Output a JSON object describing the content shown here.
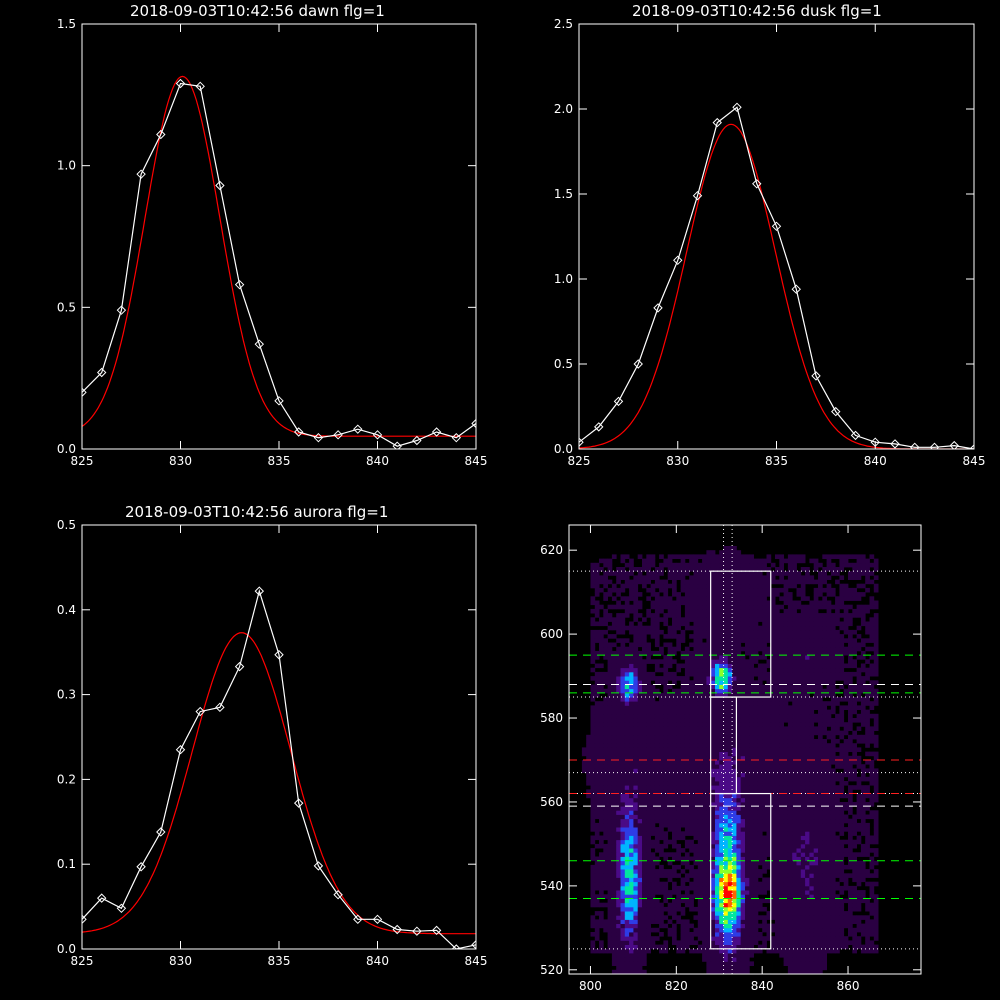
{
  "chart_data": [
    {
      "type": "line",
      "title": "2018-09-03T10:42:56 dawn flg=1",
      "xlim": [
        825,
        845
      ],
      "ylim": [
        0,
        1.5
      ],
      "xticks": [
        825,
        830,
        835,
        840,
        845
      ],
      "yticks": [
        0.0,
        0.5,
        1.0,
        1.5
      ],
      "ytick_labels": [
        "0.0",
        "0.5",
        "1.0",
        "1.5"
      ],
      "series": [
        {
          "color": "#ffffff",
          "markers": "diamond",
          "x": [
            825,
            826,
            827,
            828,
            829,
            830,
            831,
            832,
            833,
            834,
            835,
            836,
            837,
            838,
            839,
            840,
            841,
            842,
            843,
            844,
            845
          ],
          "y": [
            0.2,
            0.27,
            0.49,
            0.97,
            1.11,
            1.29,
            1.28,
            0.93,
            0.58,
            0.37,
            0.17,
            0.06,
            0.04,
            0.05,
            0.07,
            0.05,
            0.01,
            0.03,
            0.06,
            0.04,
            0.09
          ]
        },
        {
          "color": "#ff0000",
          "markers": "none",
          "fit": {
            "amplitude": 1.27,
            "center": 830.1,
            "sigma": 1.9,
            "baseline": 0.045
          }
        }
      ]
    },
    {
      "type": "line",
      "title": "2018-09-03T10:42:56 dusk flg=1",
      "xlim": [
        825,
        845
      ],
      "ylim": [
        0,
        2.5
      ],
      "xticks": [
        825,
        830,
        835,
        840,
        845
      ],
      "yticks": [
        0.0,
        0.5,
        1.0,
        1.5,
        2.0,
        2.5
      ],
      "ytick_labels": [
        "0.0",
        "0.5",
        "1.0",
        "1.5",
        "2.0",
        "2.5"
      ],
      "series": [
        {
          "color": "#ffffff",
          "markers": "diamond",
          "x": [
            825,
            826,
            827,
            828,
            829,
            830,
            831,
            832,
            833,
            834,
            835,
            836,
            837,
            838,
            839,
            840,
            841,
            842,
            843,
            844,
            845
          ],
          "y": [
            0.04,
            0.13,
            0.28,
            0.5,
            0.83,
            1.11,
            1.49,
            1.92,
            2.01,
            1.56,
            1.31,
            0.94,
            0.43,
            0.22,
            0.08,
            0.04,
            0.03,
            0.01,
            0.01,
            0.02,
            0.0
          ]
        },
        {
          "color": "#ff0000",
          "markers": "none",
          "fit": {
            "amplitude": 1.91,
            "center": 832.7,
            "sigma": 2.25,
            "baseline": 0.0
          }
        }
      ]
    },
    {
      "type": "line",
      "title": "2018-09-03T10:42:56 aurora flg=1",
      "xlim": [
        825,
        845
      ],
      "ylim": [
        0,
        0.5
      ],
      "xticks": [
        825,
        830,
        835,
        840,
        845
      ],
      "yticks": [
        0.0,
        0.1,
        0.2,
        0.3,
        0.4,
        0.5
      ],
      "ytick_labels": [
        "0.0",
        "0.1",
        "0.2",
        "0.3",
        "0.4",
        "0.5"
      ],
      "series": [
        {
          "color": "#ffffff",
          "markers": "diamond",
          "x": [
            825,
            826,
            827,
            828,
            829,
            830,
            831,
            832,
            833,
            834,
            835,
            836,
            837,
            838,
            839,
            840,
            841,
            842,
            843,
            844,
            845
          ],
          "y": [
            0.035,
            0.06,
            0.048,
            0.097,
            0.138,
            0.235,
            0.28,
            0.285,
            0.333,
            0.422,
            0.347,
            0.172,
            0.098,
            0.064,
            0.035,
            0.035,
            0.023,
            0.021,
            0.022,
            0.0,
            0.005
          ]
        },
        {
          "color": "#ff0000",
          "markers": "none",
          "fit": {
            "amplitude": 0.355,
            "center": 833.1,
            "sigma": 2.5,
            "baseline": 0.018
          }
        }
      ]
    },
    {
      "type": "heatmap",
      "xlim": [
        795,
        877
      ],
      "ylim": [
        519,
        626
      ],
      "xticks": [
        800,
        820,
        840,
        860
      ],
      "yticks": [
        520,
        540,
        560,
        580,
        600,
        620
      ],
      "colormap": [
        "#000000",
        "#2a0042",
        "#4a0a86",
        "#2e3ce6",
        "#00b4ff",
        "#00e6a0",
        "#8cff28",
        "#ffff00",
        "#ff6400",
        "#ff0000"
      ],
      "blobs": [
        {
          "x": 832,
          "y": 542,
          "sx": 2.6,
          "sy": 14,
          "amp": 0.55
        },
        {
          "x": 832,
          "y": 538,
          "sx": 2.0,
          "sy": 4,
          "amp": 0.45
        },
        {
          "x": 830.5,
          "y": 590,
          "sx": 1.8,
          "sy": 3.2,
          "amp": 0.6
        },
        {
          "x": 809,
          "y": 542,
          "sx": 2.0,
          "sy": 12,
          "amp": 0.5
        },
        {
          "x": 809,
          "y": 588,
          "sx": 1.9,
          "sy": 3.0,
          "amp": 0.5
        },
        {
          "x": 850,
          "y": 545,
          "sx": 3.5,
          "sy": 15,
          "amp": 0.18
        },
        {
          "x": 831,
          "y": 570,
          "sx": 8,
          "sy": 10,
          "amp": 0.12
        },
        {
          "x": 809,
          "y": 568,
          "sx": 6,
          "sy": 8,
          "amp": 0.1
        },
        {
          "x": 850,
          "y": 596,
          "sx": 4,
          "sy": 5,
          "amp": 0.14
        },
        {
          "x": 832,
          "y": 610,
          "sx": 5,
          "sy": 6,
          "amp": 0.1
        }
      ],
      "overlays": {
        "white_dotted_vertical_x": [
          831,
          833
        ],
        "white_dotted_horizontal_y": [
          525,
          562,
          567,
          585,
          615
        ],
        "white_dashed_horizontal_y": [
          559,
          588
        ],
        "green_dashed_horizontal_y": [
          537,
          546,
          586,
          595
        ],
        "red_dashed_horizontal_y": [
          562,
          570
        ],
        "white_boxes": [
          {
            "x0": 828,
            "x1": 842,
            "y0": 525,
            "y1": 562
          },
          {
            "x0": 828,
            "x1": 834,
            "y0": 562,
            "y1": 585
          },
          {
            "x0": 828,
            "x1": 842,
            "y0": 585,
            "y1": 615
          }
        ]
      }
    }
  ]
}
